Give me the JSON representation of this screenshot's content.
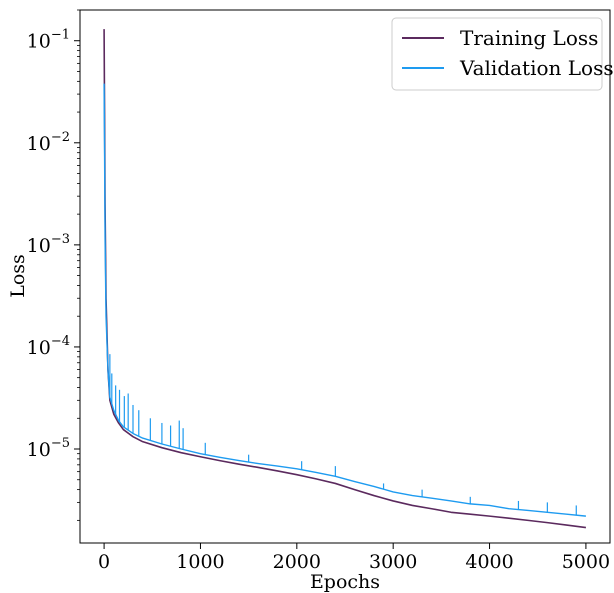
{
  "chart_data": {
    "type": "line",
    "xlabel": "Epochs",
    "ylabel": "Loss",
    "xlim": [
      -250,
      5250
    ],
    "ylim": [
      1.2e-06,
      0.2
    ],
    "yscale": "log",
    "x_ticks": [
      0,
      1000,
      2000,
      3000,
      4000,
      5000
    ],
    "x_tick_labels": [
      "0",
      "1000",
      "2000",
      "3000",
      "4000",
      "5000"
    ],
    "y_ticks": [
      1e-05,
      0.0001,
      0.001,
      0.01,
      0.1
    ],
    "y_tick_labels": [
      {
        "base": "10",
        "exp": "−5"
      },
      {
        "base": "10",
        "exp": "−4"
      },
      {
        "base": "10",
        "exp": "−3"
      },
      {
        "base": "10",
        "exp": "−2"
      },
      {
        "base": "10",
        "exp": "−1"
      }
    ],
    "grid": false,
    "legend_position": "top-right",
    "series": [
      {
        "name": "Training Loss",
        "color": "#5b2a5e",
        "x": [
          0,
          5,
          10,
          20,
          40,
          60,
          100,
          150,
          200,
          300,
          400,
          600,
          800,
          1000,
          1200,
          1400,
          1600,
          1800,
          2000,
          2200,
          2400,
          2600,
          2800,
          3000,
          3200,
          3400,
          3600,
          3800,
          4000,
          4200,
          4400,
          4600,
          4800,
          5000
        ],
        "y": [
          0.13,
          0.02,
          0.0025,
          0.0003,
          6e-05,
          3e-05,
          2.2e-05,
          1.8e-05,
          1.55e-05,
          1.32e-05,
          1.18e-05,
          1.03e-05,
          9.2e-06,
          8.4e-06,
          7.7e-06,
          7.1e-06,
          6.6e-06,
          6.1e-06,
          5.6e-06,
          5.1e-06,
          4.6e-06,
          4e-06,
          3.5e-06,
          3.1e-06,
          2.8e-06,
          2.6e-06,
          2.4e-06,
          2.3e-06,
          2.2e-06,
          2.1e-06,
          2e-06,
          1.9e-06,
          1.8e-06,
          1.7e-06
        ]
      },
      {
        "name": "Validation Loss",
        "color": "#1e9bf0",
        "x": [
          0,
          5,
          10,
          20,
          40,
          60,
          100,
          150,
          200,
          300,
          400,
          600,
          800,
          1000,
          1200,
          1400,
          1600,
          1800,
          2000,
          2200,
          2400,
          2600,
          2800,
          3000,
          3200,
          3400,
          3600,
          3800,
          4000,
          4200,
          4400,
          4600,
          4800,
          5000
        ],
        "y": [
          0.038,
          0.008,
          0.0012,
          0.0002,
          6e-05,
          3.2e-05,
          2.4e-05,
          1.9e-05,
          1.65e-05,
          1.42e-05,
          1.28e-05,
          1.12e-05,
          1e-05,
          9e-06,
          8.3e-06,
          7.7e-06,
          7.2e-06,
          6.8e-06,
          6.4e-06,
          5.9e-06,
          5.4e-06,
          4.8e-06,
          4.3e-06,
          3.8e-06,
          3.5e-06,
          3.3e-06,
          3.1e-06,
          2.9e-06,
          2.8e-06,
          2.6e-06,
          2.5e-06,
          2.4e-06,
          2.3e-06,
          2.2e-06
        ]
      }
    ],
    "spikes": [
      {
        "x": 60,
        "y": 8.5e-05
      },
      {
        "x": 80,
        "y": 5.5e-05
      },
      {
        "x": 120,
        "y": 4.2e-05
      },
      {
        "x": 160,
        "y": 3.8e-05
      },
      {
        "x": 210,
        "y": 3.3e-05
      },
      {
        "x": 250,
        "y": 3.5e-05
      },
      {
        "x": 300,
        "y": 2.7e-05
      },
      {
        "x": 360,
        "y": 2.4e-05
      },
      {
        "x": 480,
        "y": 2e-05
      },
      {
        "x": 600,
        "y": 1.8e-05
      },
      {
        "x": 690,
        "y": 1.7e-05
      },
      {
        "x": 780,
        "y": 1.9e-05
      },
      {
        "x": 820,
        "y": 1.6e-05
      },
      {
        "x": 1050,
        "y": 1.15e-05
      },
      {
        "x": 1500,
        "y": 8.8e-06
      },
      {
        "x": 2050,
        "y": 7.6e-06
      },
      {
        "x": 2400,
        "y": 6.8e-06
      },
      {
        "x": 2900,
        "y": 4.6e-06
      },
      {
        "x": 3300,
        "y": 4e-06
      },
      {
        "x": 3800,
        "y": 3.4e-06
      },
      {
        "x": 4300,
        "y": 3.1e-06
      },
      {
        "x": 4600,
        "y": 3e-06
      },
      {
        "x": 4900,
        "y": 2.8e-06
      }
    ]
  }
}
